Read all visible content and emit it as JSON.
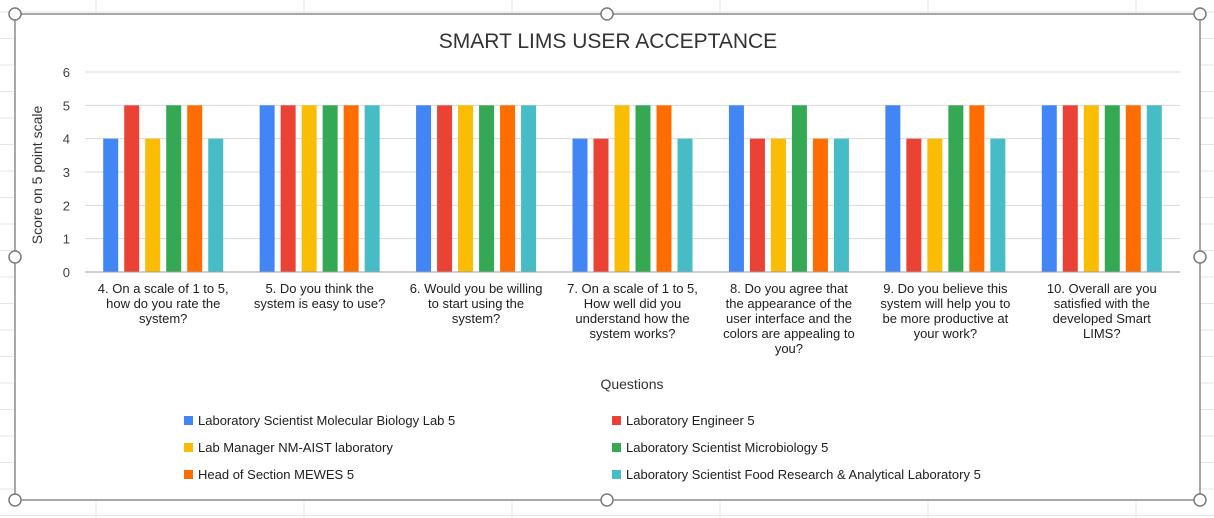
{
  "chart_data": {
    "type": "bar",
    "title": "SMART LIMS USER ACCEPTANCE",
    "xlabel": "Questions",
    "ylabel": "Score on 5 point scale",
    "ylim": [
      0,
      6
    ],
    "yticks": [
      0,
      1,
      2,
      3,
      4,
      5,
      6
    ],
    "grid": true,
    "legend_position": "bottom",
    "categories": [
      [
        "4. On a scale of 1 to 5,",
        "how do you rate the",
        "system?"
      ],
      [
        "5. Do you think the",
        "system is easy to use?"
      ],
      [
        "6. Would you be willing",
        "to start using the",
        "system?"
      ],
      [
        "7. On a scale of 1 to 5,",
        "How well did you",
        "understand how the",
        "system works?"
      ],
      [
        "8. Do you agree that",
        "the appearance of the",
        "user interface and the",
        "colors are appealing to",
        "you?"
      ],
      [
        "9. Do you believe this",
        "system will help you to",
        "be more productive at",
        "your work?"
      ],
      [
        "10. Overall are you",
        "satisfied with the",
        "developed Smart",
        "LIMS?"
      ]
    ],
    "series": [
      {
        "name": "Laboratory Scientist Molecular Biology Lab 5",
        "color": "#4285F4",
        "values": [
          4,
          5,
          5,
          4,
          5,
          5,
          5
        ]
      },
      {
        "name": "Laboratory Engineer 5",
        "color": "#EA4335",
        "values": [
          5,
          5,
          5,
          4,
          4,
          4,
          5
        ]
      },
      {
        "name": "Lab Manager NM-AIST laboratory",
        "color": "#FBBC04",
        "values": [
          4,
          5,
          5,
          5,
          4,
          4,
          5
        ]
      },
      {
        "name": "Laboratory Scientist Microbiology 5",
        "color": "#34A853",
        "values": [
          5,
          5,
          5,
          5,
          5,
          5,
          5
        ]
      },
      {
        "name": "Head of Section MEWES 5",
        "color": "#FF6D01",
        "values": [
          5,
          5,
          5,
          5,
          4,
          5,
          5
        ]
      },
      {
        "name": "Laboratory Scientist Food Research & Analytical Laboratory 5",
        "color": "#46BDC6",
        "values": [
          4,
          5,
          5,
          4,
          4,
          4,
          5
        ]
      }
    ]
  }
}
